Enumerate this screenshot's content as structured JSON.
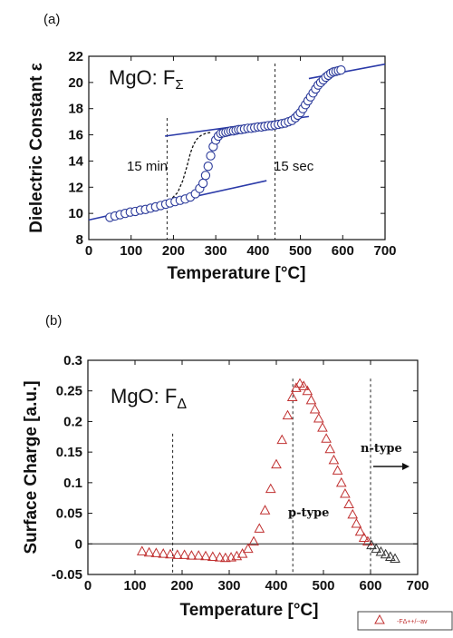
{
  "chart_data": [
    {
      "panel_label": "(a)",
      "type": "scatter",
      "title": "MgO:  F",
      "title_subscript": "Σ",
      "xlabel": "Temperature [°C]",
      "ylabel": "Dielectric Constant ε",
      "xlim": [
        0,
        700
      ],
      "ylim": [
        8,
        22
      ],
      "xticks": [
        "0",
        "100",
        "200",
        "300",
        "400",
        "500",
        "600",
        "700"
      ],
      "yticks": [
        "8",
        "10",
        "12",
        "14",
        "16",
        "18",
        "20",
        "22"
      ],
      "annotations": [
        "15 min",
        "15 sec"
      ],
      "marker": "open-circle",
      "marker_color": "#2b3a9a",
      "x": [
        50,
        62,
        74,
        86,
        98,
        110,
        122,
        134,
        146,
        158,
        170,
        182,
        192,
        204,
        216,
        228,
        240,
        252,
        262,
        270,
        276,
        282,
        288,
        294,
        300,
        306,
        312,
        318,
        324,
        330,
        336,
        342,
        348,
        354,
        360,
        368,
        376,
        384,
        392,
        400,
        408,
        416,
        424,
        432,
        440,
        448,
        456,
        464,
        472,
        480,
        488,
        494,
        500,
        506,
        512,
        518,
        524,
        530,
        536,
        542,
        548,
        554,
        560,
        566,
        572,
        578,
        584,
        590,
        596
      ],
      "y": [
        9.7,
        9.8,
        9.9,
        10.0,
        10.1,
        10.15,
        10.25,
        10.3,
        10.4,
        10.5,
        10.6,
        10.7,
        10.8,
        10.9,
        11.0,
        11.1,
        11.25,
        11.5,
        11.9,
        12.3,
        12.9,
        13.6,
        14.4,
        15.1,
        15.6,
        15.9,
        16.1,
        16.15,
        16.2,
        16.25,
        16.3,
        16.3,
        16.35,
        16.4,
        16.4,
        16.45,
        16.5,
        16.5,
        16.55,
        16.6,
        16.6,
        16.65,
        16.7,
        16.7,
        16.75,
        16.8,
        16.85,
        16.9,
        17.0,
        17.1,
        17.3,
        17.5,
        17.7,
        18.0,
        18.3,
        18.6,
        18.9,
        19.2,
        19.5,
        19.8,
        20.0,
        20.2,
        20.4,
        20.55,
        20.7,
        20.8,
        20.85,
        20.9,
        20.95
      ],
      "fit_lines": [
        {
          "x": [
            0,
            420
          ],
          "y": [
            9.5,
            12.5
          ]
        },
        {
          "x": [
            180,
            520
          ],
          "y": [
            15.9,
            17.4
          ]
        },
        {
          "x": [
            520,
            700
          ],
          "y": [
            20.3,
            21.4
          ]
        }
      ],
      "dashed_curve": {
        "x": [
          180,
          195,
          210,
          222,
          232,
          240,
          248,
          256,
          265,
          275,
          290
        ],
        "y": [
          10.8,
          11.1,
          11.6,
          12.5,
          13.6,
          14.6,
          15.3,
          15.7,
          15.95,
          16.1,
          16.2
        ]
      },
      "vlines": [
        185,
        440
      ]
    },
    {
      "panel_label": "(b)",
      "type": "scatter",
      "title": "MgO: F",
      "title_subscript": "Δ",
      "xlabel": "Temperature [°C]",
      "ylabel": "Surface Charge [a.u.]",
      "xlim": [
        0,
        700
      ],
      "ylim": [
        -0.05,
        0.3
      ],
      "xticks": [
        "0",
        "100",
        "200",
        "300",
        "400",
        "500",
        "600",
        "700"
      ],
      "yticks": [
        "0.3",
        "0.25",
        "0.2",
        "0.15",
        "0.1",
        "0.05",
        "0",
        "-0.05"
      ],
      "annotations": [
        "n-type",
        "p-type"
      ],
      "legend": "-FΔ++/--av",
      "legend_position": "bottom-right",
      "marker": "open-triangle",
      "series": [
        {
          "color": "#c03030",
          "x": [
            115,
            130,
            145,
            160,
            175,
            190,
            205,
            220,
            235,
            250,
            265,
            280,
            292,
            304,
            316,
            328,
            340,
            352,
            364,
            376,
            388,
            400,
            412,
            424,
            434,
            442,
            450,
            458,
            466,
            474,
            482,
            490,
            498,
            506,
            514,
            522,
            530,
            538,
            546,
            554,
            562,
            570,
            578,
            586,
            594
          ],
          "y": [
            -0.012,
            -0.014,
            -0.015,
            -0.016,
            -0.017,
            -0.018,
            -0.018,
            -0.019,
            -0.019,
            -0.02,
            -0.021,
            -0.022,
            -0.023,
            -0.022,
            -0.02,
            -0.016,
            -0.008,
            0.004,
            0.025,
            0.055,
            0.09,
            0.13,
            0.17,
            0.21,
            0.24,
            0.255,
            0.262,
            0.258,
            0.25,
            0.235,
            0.22,
            0.205,
            0.19,
            0.172,
            0.155,
            0.137,
            0.12,
            0.1,
            0.082,
            0.065,
            0.048,
            0.033,
            0.02,
            0.01,
            0.004
          ]
        },
        {
          "color": "#333333",
          "x": [
            602,
            612,
            622,
            632,
            642,
            652
          ],
          "y": [
            -0.002,
            -0.008,
            -0.013,
            -0.017,
            -0.021,
            -0.024
          ]
        }
      ],
      "hline": 0,
      "vlines": [
        180,
        435,
        600
      ]
    }
  ]
}
